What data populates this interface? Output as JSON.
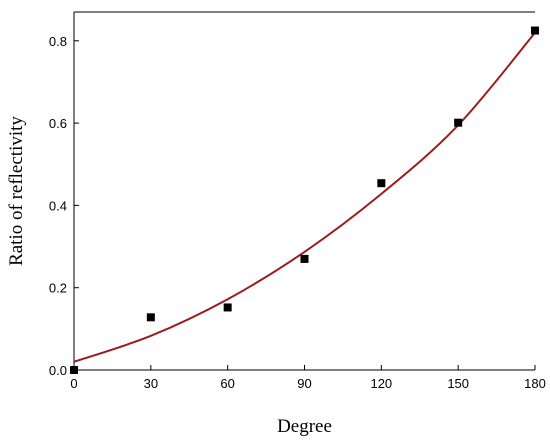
{
  "chart_data": {
    "type": "scatter",
    "title": "",
    "xlabel": "Degree",
    "ylabel": "Ratio of reflectivity",
    "xlim": [
      0,
      180
    ],
    "ylim": [
      0,
      0.87
    ],
    "xticks": [
      0,
      30,
      60,
      90,
      120,
      150,
      180
    ],
    "yticks": [
      0.0,
      0.2,
      0.4,
      0.6,
      0.8
    ],
    "xtick_labels": [
      "0",
      "30",
      "60",
      "90",
      "120",
      "150",
      "180"
    ],
    "ytick_labels": [
      "0.0",
      "0.2",
      "0.4",
      "0.6",
      "0.8"
    ],
    "grid": false,
    "series": [
      {
        "marker": "square",
        "color": "#000000",
        "x": [
          0,
          30,
          60,
          90,
          120,
          150,
          180
        ],
        "y": [
          0.0,
          0.128,
          0.152,
          0.27,
          0.454,
          0.601,
          0.825
        ]
      },
      {
        "kind": "fit-curve",
        "color": "#9b1c1c",
        "x": [
          0,
          30,
          60,
          90,
          120,
          150,
          180
        ],
        "y": [
          0.02,
          0.083,
          0.172,
          0.287,
          0.428,
          0.595,
          0.8195
        ]
      }
    ]
  }
}
